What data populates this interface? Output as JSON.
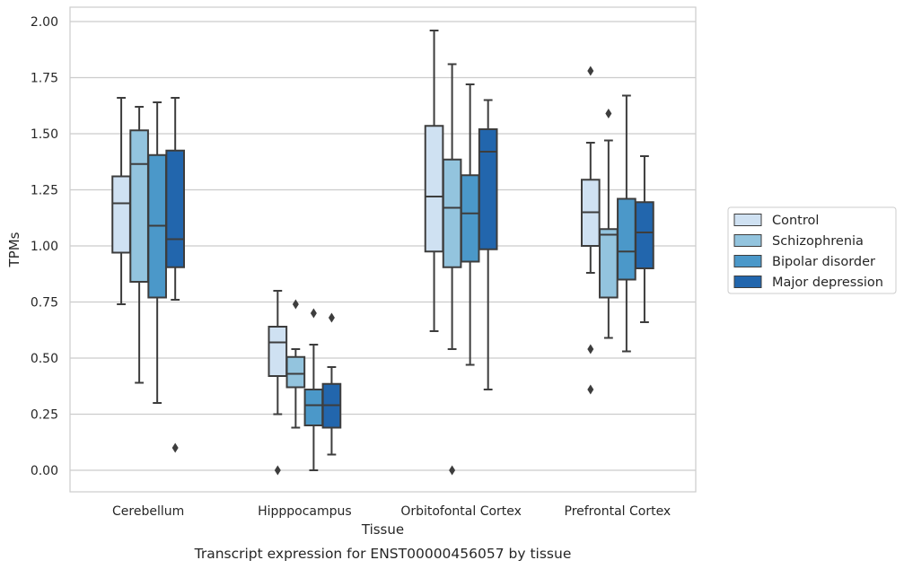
{
  "chart_data": {
    "type": "boxplot",
    "caption": "Transcript expression for ENST00000456057 by tissue",
    "xlabel": "Tissue",
    "ylabel": "TPMs",
    "ylim": [
      -0.1,
      2.06
    ],
    "yticks": [
      "0.00",
      "0.25",
      "0.50",
      "0.75",
      "1.00",
      "1.25",
      "1.50",
      "1.75",
      "2.00"
    ],
    "grid": "horizontal",
    "legend_position": "right",
    "categories": [
      "Cerebellum",
      "Hipppocampus",
      "Orbitofontal Cortex",
      "Prefrontal Cortex"
    ],
    "series": [
      {
        "name": "Control",
        "color": "#cfe1f2",
        "boxes": [
          {
            "whislo": 0.74,
            "q1": 0.97,
            "med": 1.19,
            "q3": 1.31,
            "whishi": 1.66,
            "fliers": []
          },
          {
            "whislo": 0.25,
            "q1": 0.42,
            "med": 0.57,
            "q3": 0.64,
            "whishi": 0.8,
            "fliers": [
              0.0
            ]
          },
          {
            "whislo": 0.62,
            "q1": 0.975,
            "med": 1.22,
            "q3": 1.535,
            "whishi": 1.96,
            "fliers": []
          },
          {
            "whislo": 0.88,
            "q1": 1.0,
            "med": 1.15,
            "q3": 1.295,
            "whishi": 1.46,
            "fliers": [
              1.78,
              0.54,
              0.36
            ]
          }
        ]
      },
      {
        "name": "Schizophrenia",
        "color": "#93c4de",
        "boxes": [
          {
            "whislo": 0.39,
            "q1": 0.84,
            "med": 1.365,
            "q3": 1.515,
            "whishi": 1.62,
            "fliers": []
          },
          {
            "whislo": 0.19,
            "q1": 0.37,
            "med": 0.43,
            "q3": 0.505,
            "whishi": 0.54,
            "fliers": [
              0.74
            ]
          },
          {
            "whislo": 0.54,
            "q1": 0.905,
            "med": 1.17,
            "q3": 1.385,
            "whishi": 1.81,
            "fliers": [
              0.0
            ]
          },
          {
            "whislo": 0.59,
            "q1": 0.77,
            "med": 1.05,
            "q3": 1.075,
            "whishi": 1.47,
            "fliers": [
              1.59
            ]
          }
        ]
      },
      {
        "name": "Bipolar disorder",
        "color": "#4b98c9",
        "boxes": [
          {
            "whislo": 0.3,
            "q1": 0.77,
            "med": 1.09,
            "q3": 1.405,
            "whishi": 1.64,
            "fliers": []
          },
          {
            "whislo": 0.0,
            "q1": 0.2,
            "med": 0.29,
            "q3": 0.36,
            "whishi": 0.56,
            "fliers": [
              0.7
            ]
          },
          {
            "whislo": 0.47,
            "q1": 0.93,
            "med": 1.145,
            "q3": 1.315,
            "whishi": 1.72,
            "fliers": []
          },
          {
            "whislo": 0.53,
            "q1": 0.85,
            "med": 0.975,
            "q3": 1.21,
            "whishi": 1.67,
            "fliers": []
          }
        ]
      },
      {
        "name": "Major depression",
        "color": "#2266ad",
        "boxes": [
          {
            "whislo": 0.76,
            "q1": 0.905,
            "med": 1.03,
            "q3": 1.425,
            "whishi": 1.66,
            "fliers": [
              0.1
            ]
          },
          {
            "whislo": 0.07,
            "q1": 0.19,
            "med": 0.29,
            "q3": 0.385,
            "whishi": 0.46,
            "fliers": [
              0.68
            ]
          },
          {
            "whislo": 0.36,
            "q1": 0.985,
            "med": 1.42,
            "q3": 1.52,
            "whishi": 1.65,
            "fliers": []
          },
          {
            "whislo": 0.66,
            "q1": 0.9,
            "med": 1.06,
            "q3": 1.195,
            "whishi": 1.4,
            "fliers": []
          }
        ]
      }
    ]
  }
}
